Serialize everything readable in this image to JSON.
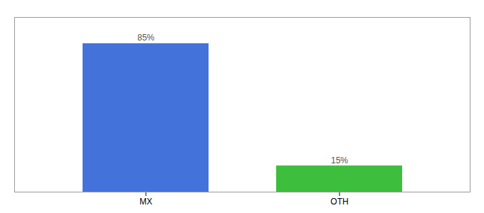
{
  "chart_data": {
    "type": "bar",
    "categories": [
      "MX",
      "OTH"
    ],
    "values": [
      85,
      15
    ],
    "value_labels": [
      "85%",
      "15%"
    ],
    "colors": [
      "#4472db",
      "#3dbe3d"
    ],
    "ylim": [
      0,
      100
    ],
    "grid": false,
    "data_labels": true,
    "tick_labels": "x"
  }
}
